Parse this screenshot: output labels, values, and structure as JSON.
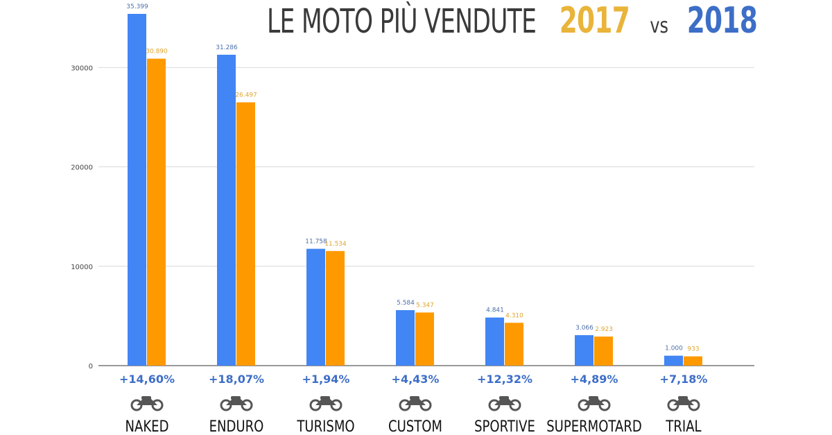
{
  "title": {
    "main": "LE MOTO PIÙ VENDUTE",
    "year_a": "2017",
    "vs": "vs",
    "year_b": "2018"
  },
  "colors": {
    "series_2018": "#4285f4",
    "series_2017": "#ff9900",
    "label_2018": "#4a6fa8",
    "label_2017": "#e0a52c",
    "change": "#3d6ec7",
    "axis_text": "#444444",
    "category_text": "#111111",
    "grid": "#d9d9d9"
  },
  "chart_data": {
    "type": "bar",
    "categories": [
      "NAKED",
      "ENDURO",
      "TURISMO",
      "CUSTOM",
      "SPORTIVE",
      "SUPERMOTARD",
      "TRIAL"
    ],
    "series": [
      {
        "values": [
          35399,
          31286,
          11758,
          5584,
          4841,
          3066,
          1000
        ],
        "labels": [
          "35.399",
          "31.286",
          "11.758",
          "5.584",
          "4.841",
          "3.066",
          "1.000"
        ]
      },
      {
        "values": [
          30890,
          26497,
          11534,
          5347,
          4310,
          2923,
          933
        ],
        "labels": [
          "30.890",
          "26.497",
          "11.534",
          "5.347",
          "4.310",
          "2.923",
          "933"
        ]
      }
    ],
    "changes": [
      "+14,60%",
      "+18,07%",
      "+1,94%",
      "+4,43%",
      "+12,32%",
      "+4,89%",
      "+7,18%"
    ],
    "icons": [
      "naked-motorcycle-icon",
      "enduro-motorcycle-icon",
      "touring-motorcycle-icon",
      "custom-motorcycle-icon",
      "sport-motorcycle-icon",
      "supermotard-motorcycle-icon",
      "trial-motorcycle-icon"
    ],
    "yticks": [
      0,
      10000,
      20000,
      30000
    ],
    "ytick_labels": [
      "0",
      "10000",
      "20000",
      "30000"
    ],
    "ylim": [
      0,
      35399
    ],
    "grid": true,
    "legend": "none"
  }
}
